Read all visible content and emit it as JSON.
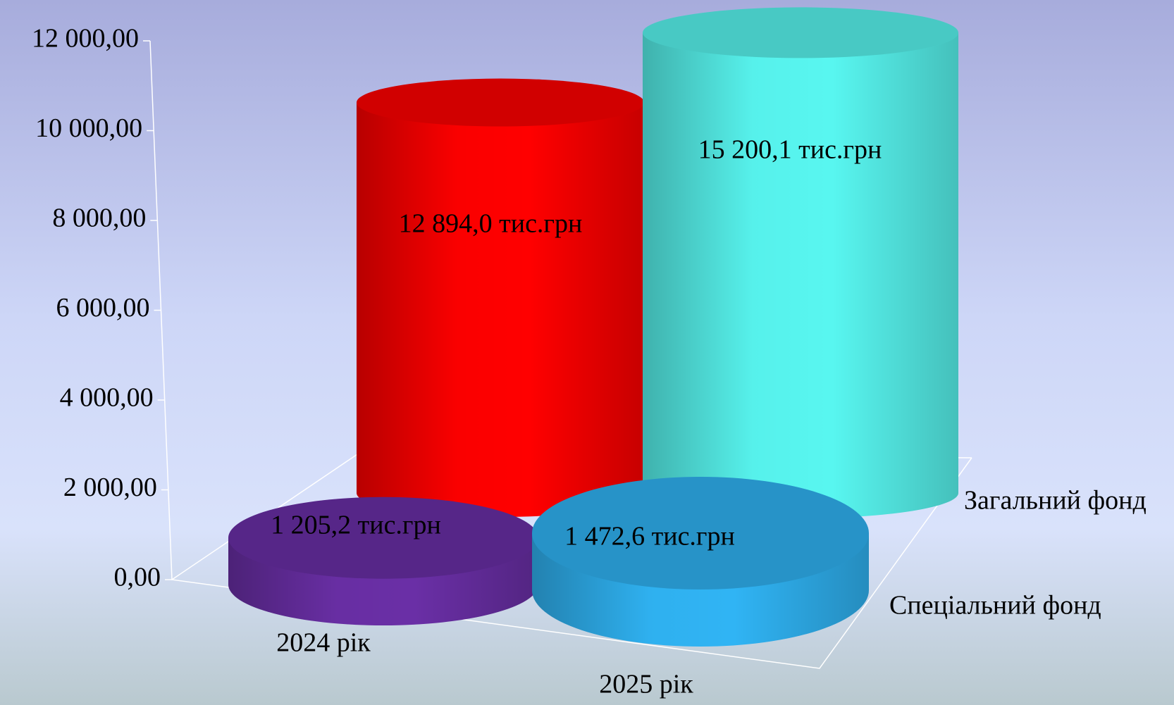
{
  "chart_data": {
    "type": "cylinder3d",
    "categories": [
      "2024 рік",
      "2025 рік"
    ],
    "series": [
      {
        "name": "Загальний фонд",
        "colors": [
          "#ff0000",
          "#58f6f0"
        ],
        "values": [
          12894.0,
          15200.1
        ],
        "value_labels": [
          "12 894,0 тис.грн",
          "15 200,1 тис.грн"
        ]
      },
      {
        "name": "Спеціальний фонд",
        "colors": [
          "#6a2fa6",
          "#30b4f4"
        ],
        "values": [
          1205.2,
          1472.6
        ],
        "value_labels": [
          "1 205,2 тис.грн",
          "1 472,6 тис.грн"
        ]
      }
    ],
    "ylim": [
      0,
      12000
    ],
    "yticks": [
      {
        "value": 0,
        "label": "0,00"
      },
      {
        "value": 2000,
        "label": "2 000,00"
      },
      {
        "value": 4000,
        "label": "4 000,00"
      },
      {
        "value": 6000,
        "label": "6 000,00"
      },
      {
        "value": 8000,
        "label": "8 000,00"
      },
      {
        "value": 10000,
        "label": "10 000,00"
      },
      {
        "value": 12000,
        "label": "12 000,00"
      }
    ]
  }
}
